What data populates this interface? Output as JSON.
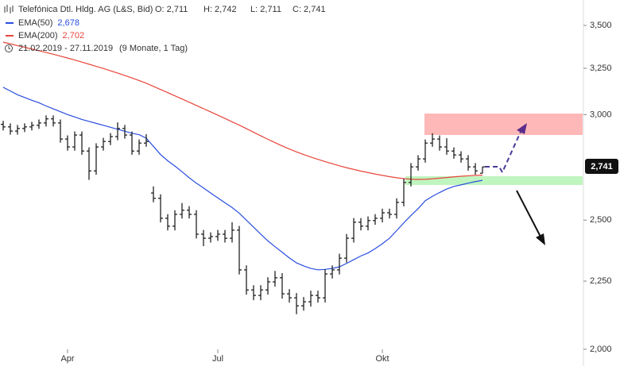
{
  "chart_data": {
    "type": "ohlc",
    "title": "Telefónica Dtl. Hldg. AG (L&S, Bid)",
    "quote": [
      "O: 2,711",
      "H: 2,742",
      "L: 2,711",
      "C: 2,741"
    ],
    "period": "21.02.2019 - 27.11.2019",
    "period_note": "(9 Monate, 1 Tag)",
    "price_tag": "2,741",
    "log_scale": true,
    "bar_color": "#111111",
    "ylim": [
      1.943,
      3.657
    ],
    "yticks": [
      {
        "value": 2.0,
        "label": "2,000"
      },
      {
        "value": 2.25,
        "label": "2,250"
      },
      {
        "value": 2.5,
        "label": "2,500"
      },
      {
        "value": 3.0,
        "label": "3,000"
      },
      {
        "value": 3.25,
        "label": "3,250"
      },
      {
        "value": 3.5,
        "label": "3,500"
      }
    ],
    "categories": [
      null,
      null,
      null,
      null,
      null,
      null,
      null,
      null,
      null,
      "Apr",
      null,
      null,
      null,
      null,
      null,
      null,
      null,
      null,
      null,
      null,
      null,
      null,
      null,
      null,
      null,
      null,
      null,
      null,
      null,
      null,
      "Jul",
      null,
      null,
      null,
      null,
      null,
      null,
      null,
      null,
      null,
      null,
      null,
      null,
      null,
      null,
      null,
      null,
      null,
      null,
      null,
      null,
      null,
      null,
      "Okt",
      null,
      null,
      null,
      null,
      null,
      null,
      null,
      null,
      null,
      null,
      null,
      null,
      null,
      null
    ],
    "ohlc": [
      [
        2.95,
        2.968,
        2.919,
        2.937
      ],
      [
        2.937,
        2.955,
        2.898,
        2.916
      ],
      [
        2.916,
        2.947,
        2.898,
        2.929
      ],
      [
        2.929,
        2.955,
        2.911,
        2.937
      ],
      [
        2.937,
        2.963,
        2.919,
        2.945
      ],
      [
        2.945,
        2.975,
        2.927,
        2.957
      ],
      [
        2.957,
        2.996,
        2.939,
        2.978
      ],
      [
        2.978,
        2.996,
        2.939,
        2.957
      ],
      [
        2.957,
        2.975,
        2.858,
        2.876
      ],
      [
        2.876,
        2.894,
        2.819,
        2.837
      ],
      [
        2.837,
        2.914,
        2.819,
        2.896
      ],
      [
        2.896,
        2.914,
        2.799,
        2.817
      ],
      [
        2.817,
        2.835,
        2.68,
        2.722
      ],
      [
        2.722,
        2.855,
        2.704,
        2.837
      ],
      [
        2.837,
        2.882,
        2.819,
        2.864
      ],
      [
        2.864,
        2.906,
        2.846,
        2.888
      ],
      [
        2.888,
        2.96,
        2.87,
        2.929
      ],
      [
        2.929,
        2.947,
        2.878,
        2.896
      ],
      [
        2.896,
        2.914,
        2.799,
        2.817
      ],
      [
        2.817,
        2.874,
        2.799,
        2.856
      ],
      [
        2.856,
        2.9,
        2.838,
        2.864
      ],
      [
        2.62,
        2.65,
        2.578,
        2.596
      ],
      [
        2.596,
        2.614,
        2.49,
        2.508
      ],
      [
        2.508,
        2.526,
        2.456,
        2.474
      ],
      [
        2.474,
        2.543,
        2.456,
        2.525
      ],
      [
        2.525,
        2.575,
        2.507,
        2.543
      ],
      [
        2.543,
        2.561,
        2.507,
        2.525
      ],
      [
        2.525,
        2.543,
        2.422,
        2.44
      ],
      [
        2.44,
        2.458,
        2.39,
        2.423
      ],
      [
        2.423,
        2.448,
        2.405,
        2.43
      ],
      [
        2.43,
        2.458,
        2.412,
        2.44
      ],
      [
        2.44,
        2.458,
        2.405,
        2.423
      ],
      [
        2.423,
        2.491,
        2.405,
        2.457
      ],
      [
        2.457,
        2.475,
        2.276,
        2.294
      ],
      [
        2.294,
        2.312,
        2.198,
        2.216
      ],
      [
        2.216,
        2.234,
        2.177,
        2.195
      ],
      [
        2.195,
        2.234,
        2.177,
        2.216
      ],
      [
        2.216,
        2.265,
        2.198,
        2.247
      ],
      [
        2.247,
        2.29,
        2.229,
        2.263
      ],
      [
        2.263,
        2.281,
        2.183,
        2.201
      ],
      [
        2.201,
        2.219,
        2.168,
        2.186
      ],
      [
        2.186,
        2.204,
        2.125,
        2.156
      ],
      [
        2.156,
        2.189,
        2.138,
        2.171
      ],
      [
        2.171,
        2.213,
        2.153,
        2.195
      ],
      [
        2.195,
        2.213,
        2.168,
        2.186
      ],
      [
        2.186,
        2.296,
        2.168,
        2.278
      ],
      [
        2.278,
        2.312,
        2.26,
        2.294
      ],
      [
        2.294,
        2.359,
        2.276,
        2.341
      ],
      [
        2.341,
        2.441,
        2.323,
        2.423
      ],
      [
        2.423,
        2.509,
        2.405,
        2.491
      ],
      [
        2.491,
        2.509,
        2.456,
        2.474
      ],
      [
        2.474,
        2.516,
        2.456,
        2.498
      ],
      [
        2.498,
        2.526,
        2.48,
        2.508
      ],
      [
        2.508,
        2.55,
        2.49,
        2.532
      ],
      [
        2.532,
        2.55,
        2.507,
        2.525
      ],
      [
        2.525,
        2.596,
        2.507,
        2.578
      ],
      [
        2.578,
        2.686,
        2.56,
        2.668
      ],
      [
        2.668,
        2.759,
        2.65,
        2.741
      ],
      [
        2.741,
        2.797,
        2.723,
        2.779
      ],
      [
        2.779,
        2.874,
        2.761,
        2.856
      ],
      [
        2.856,
        2.905,
        2.838,
        2.876
      ],
      [
        2.876,
        2.894,
        2.819,
        2.837
      ],
      [
        2.837,
        2.88,
        2.799,
        2.817
      ],
      [
        2.817,
        2.835,
        2.78,
        2.798
      ],
      [
        2.798,
        2.816,
        2.761,
        2.779
      ],
      [
        2.779,
        2.797,
        2.723,
        2.741
      ],
      [
        2.741,
        2.759,
        2.704,
        2.722
      ],
      [
        2.711,
        2.742,
        2.711,
        2.741
      ]
    ],
    "series": [
      {
        "name": "EMA(50)",
        "color": "#2a4de0",
        "last_label": "2,678",
        "values": [
          3.145,
          3.125,
          3.105,
          3.09,
          3.075,
          3.062,
          3.045,
          3.03,
          3.015,
          3.0,
          2.988,
          2.975,
          2.965,
          2.955,
          2.945,
          2.935,
          2.925,
          2.915,
          2.905,
          2.898,
          2.88,
          2.84,
          2.8,
          2.77,
          2.745,
          2.718,
          2.69,
          2.665,
          2.643,
          2.62,
          2.598,
          2.576,
          2.555,
          2.53,
          2.5,
          2.47,
          2.44,
          2.412,
          2.388,
          2.365,
          2.342,
          2.322,
          2.31,
          2.3,
          2.294,
          2.296,
          2.3,
          2.306,
          2.32,
          2.335,
          2.35,
          2.362,
          2.38,
          2.4,
          2.423,
          2.455,
          2.488,
          2.52,
          2.55,
          2.585,
          2.605,
          2.622,
          2.638,
          2.65,
          2.657,
          2.665,
          2.672,
          2.678
        ]
      },
      {
        "name": "EMA(200)",
        "color": "#e8453a",
        "last_label": "2,702",
        "values": [
          3.4,
          3.39,
          3.38,
          3.37,
          3.36,
          3.35,
          3.34,
          3.33,
          3.319,
          3.308,
          3.297,
          3.285,
          3.273,
          3.261,
          3.249,
          3.236,
          3.223,
          3.21,
          3.196,
          3.182,
          3.167,
          3.15,
          3.133,
          3.116,
          3.099,
          3.082,
          3.065,
          3.048,
          3.031,
          3.014,
          2.997,
          2.98,
          2.963,
          2.946,
          2.928,
          2.91,
          2.892,
          2.875,
          2.858,
          2.842,
          2.827,
          2.813,
          2.8,
          2.788,
          2.777,
          2.766,
          2.756,
          2.746,
          2.737,
          2.729,
          2.721,
          2.714,
          2.707,
          2.701,
          2.695,
          2.69,
          2.686,
          2.683,
          2.682,
          2.683,
          2.685,
          2.688,
          2.691,
          2.694,
          2.697,
          2.699,
          2.701,
          2.702
        ]
      }
    ]
  }
}
